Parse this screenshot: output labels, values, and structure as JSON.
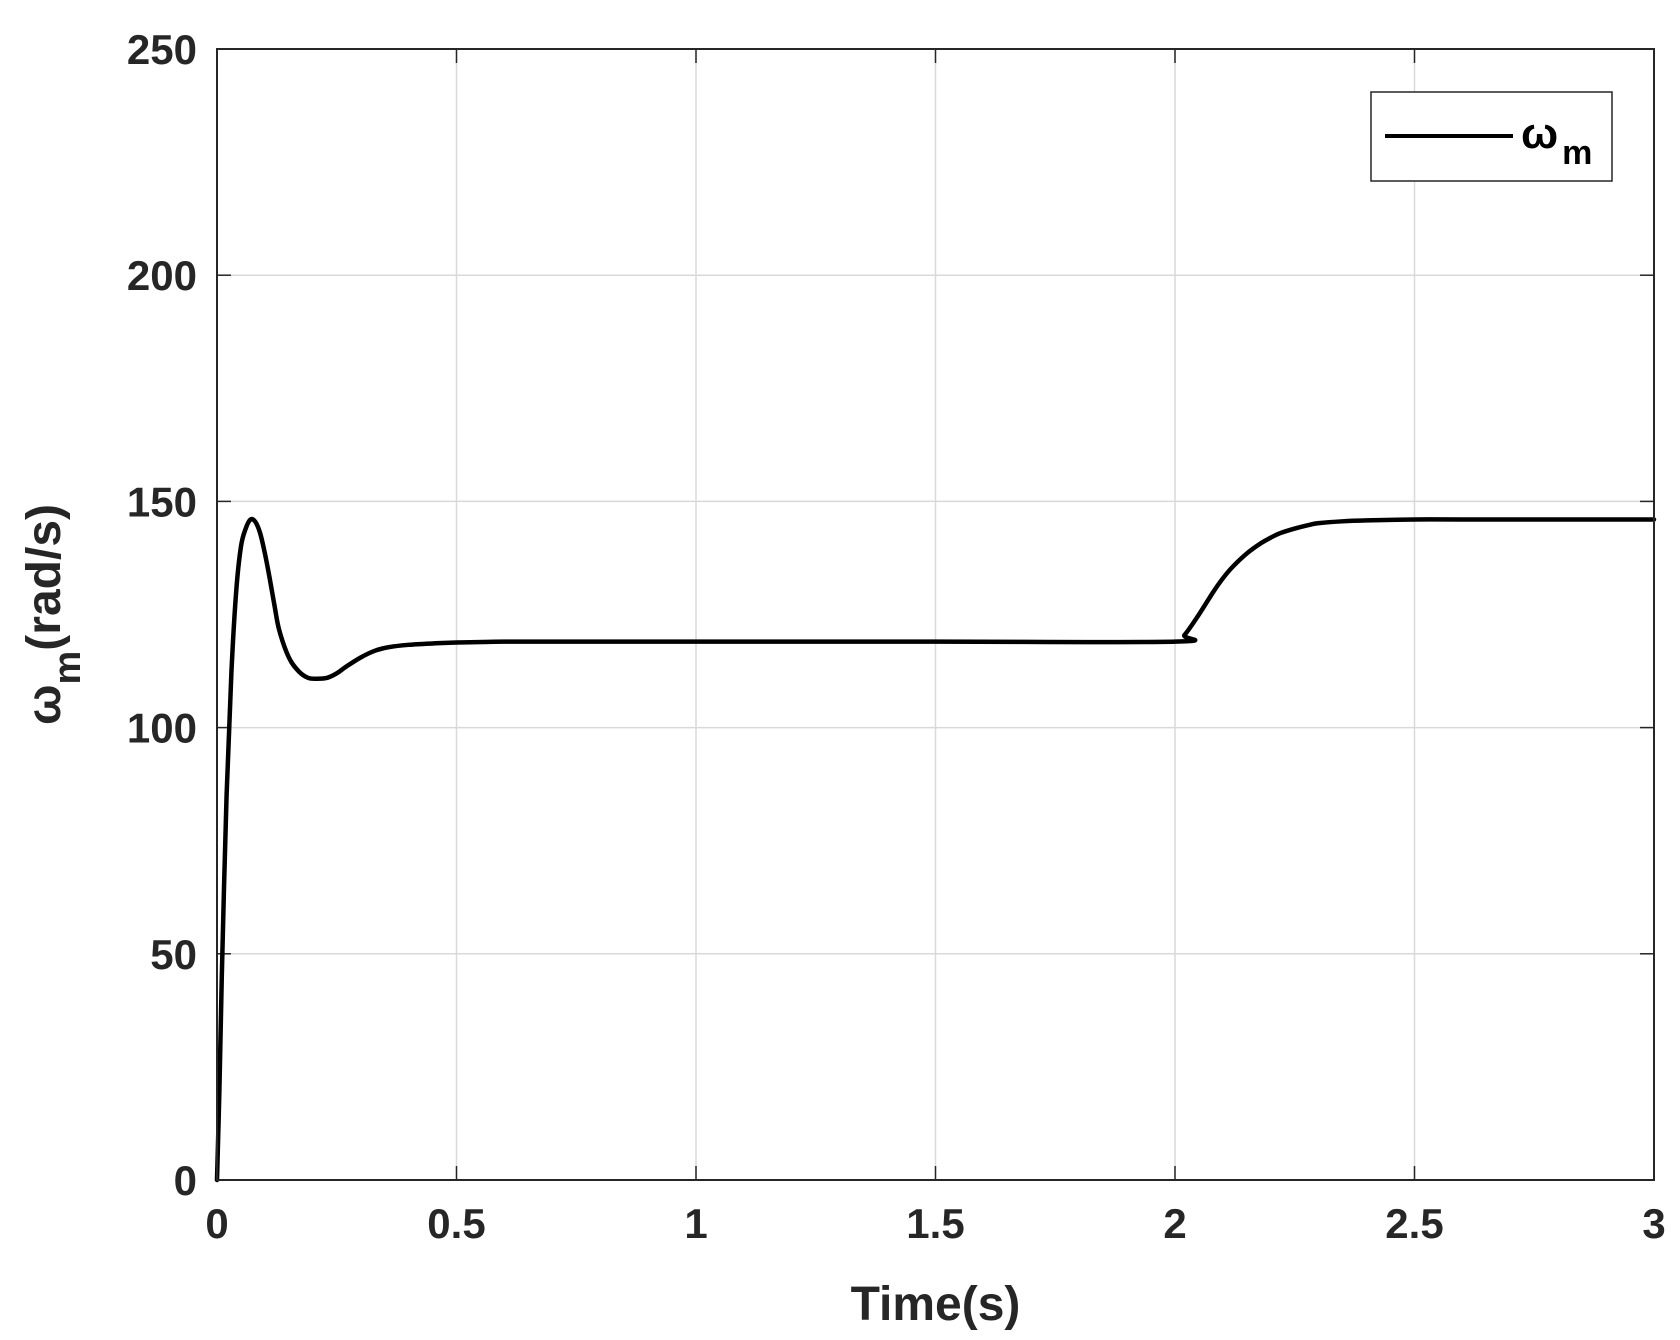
{
  "chart_data": {
    "type": "line",
    "xlabel": "Time(s)",
    "ylabel": {
      "base": "ω",
      "sub": "m",
      "rest": "(rad/s)"
    },
    "xlim": [
      0,
      3
    ],
    "ylim": [
      0,
      250
    ],
    "xticks": [
      0,
      0.5,
      1,
      1.5,
      2,
      2.5,
      3
    ],
    "xtick_labels": [
      "0",
      "0.5",
      "1",
      "1.5",
      "2",
      "2.5",
      "3"
    ],
    "yticks": [
      0,
      50,
      100,
      150,
      200,
      250
    ],
    "ytick_labels": [
      "0",
      "50",
      "100",
      "150",
      "200",
      "250"
    ],
    "grid": true,
    "legend_position": "top-right",
    "colors": {
      "series": "#000000",
      "axis": "#262626",
      "grid": "#d9d9d9"
    },
    "series": [
      {
        "name": {
          "base": "ω",
          "sub": "m"
        },
        "x": [
          0,
          0.005,
          0.01,
          0.02,
          0.03,
          0.04,
          0.05,
          0.06,
          0.07,
          0.08,
          0.09,
          0.1,
          0.11,
          0.12,
          0.13,
          0.15,
          0.17,
          0.19,
          0.21,
          0.23,
          0.25,
          0.27,
          0.3,
          0.33,
          0.36,
          0.4,
          0.45,
          0.5,
          0.6,
          0.7,
          0.8,
          1.0,
          1.5,
          2.0,
          2.02,
          2.05,
          2.08,
          2.1,
          2.12,
          2.15,
          2.18,
          2.2,
          2.22,
          2.25,
          2.28,
          2.3,
          2.35,
          2.4,
          2.5,
          2.6,
          2.8,
          3.0
        ],
        "y": [
          0,
          20,
          45,
          85,
          112,
          130,
          140,
          144,
          146,
          145.5,
          143,
          138.5,
          133,
          127,
          121.5,
          115.5,
          112.5,
          111,
          110.8,
          111,
          112,
          113.5,
          115.5,
          117,
          117.8,
          118.3,
          118.6,
          118.8,
          119,
          119,
          119,
          119,
          119,
          119,
          120.5,
          125,
          130,
          133,
          135.5,
          138.5,
          140.8,
          142,
          143,
          144,
          144.8,
          145.2,
          145.6,
          145.8,
          146,
          146,
          146,
          146
        ]
      }
    ]
  }
}
